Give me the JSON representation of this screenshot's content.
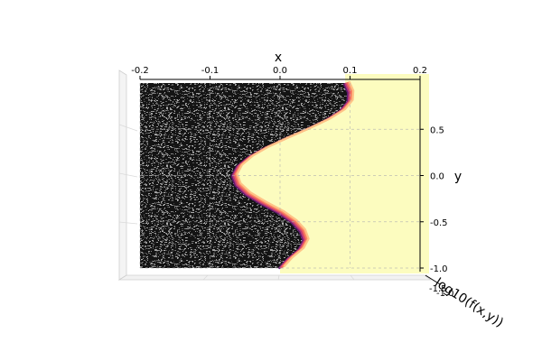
{
  "chart_data": {
    "type": "surface",
    "projection": "3d",
    "view": "top-down",
    "title": "",
    "xlabel": "x",
    "ylabel": "y",
    "zlabel": "log10(f(x,y))",
    "xlim": [
      -0.2,
      0.2
    ],
    "ylim": [
      -1.0,
      1.0
    ],
    "zlim": [
      -1.5,
      -1.0
    ],
    "x_ticks": [
      "-0.2",
      "-0.1",
      "0.0",
      "0.1",
      "0.2"
    ],
    "x_tick_values": [
      -0.2,
      -0.1,
      0.0,
      0.1,
      0.2
    ],
    "y_ticks": [
      "0.5",
      "0.0",
      "-0.5",
      "-1.0"
    ],
    "y_tick_values": [
      0.5,
      0.0,
      -0.5,
      -1.0
    ],
    "z_ticks": [
      "-1.5",
      "-1.0"
    ],
    "colormap": "magma",
    "boundary_curve": {
      "description": "edge between noisy low region (left) and flat high region (right)",
      "y": [
        1.0,
        0.9,
        0.8,
        0.7,
        0.6,
        0.5,
        0.4,
        0.3,
        0.2,
        0.1,
        0.0,
        -0.1,
        -0.2,
        -0.3,
        -0.4,
        -0.5,
        -0.6,
        -0.7,
        -0.8,
        -0.9,
        -1.0
      ],
      "x": [
        0.093,
        0.099,
        0.098,
        0.087,
        0.066,
        0.038,
        0.008,
        -0.021,
        -0.044,
        -0.06,
        -0.067,
        -0.062,
        -0.048,
        -0.026,
        -0.001,
        0.018,
        0.03,
        0.035,
        0.028,
        0.012,
        0.0
      ]
    },
    "colors": {
      "noise_dark": "#141414",
      "noise_light": "#9a9a9a",
      "flat_region": "#fcfcbf",
      "edge_band": [
        "#5e1a6e",
        "#b5367a",
        "#e55964",
        "#fb8861",
        "#fec387"
      ]
    },
    "grid": true
  }
}
